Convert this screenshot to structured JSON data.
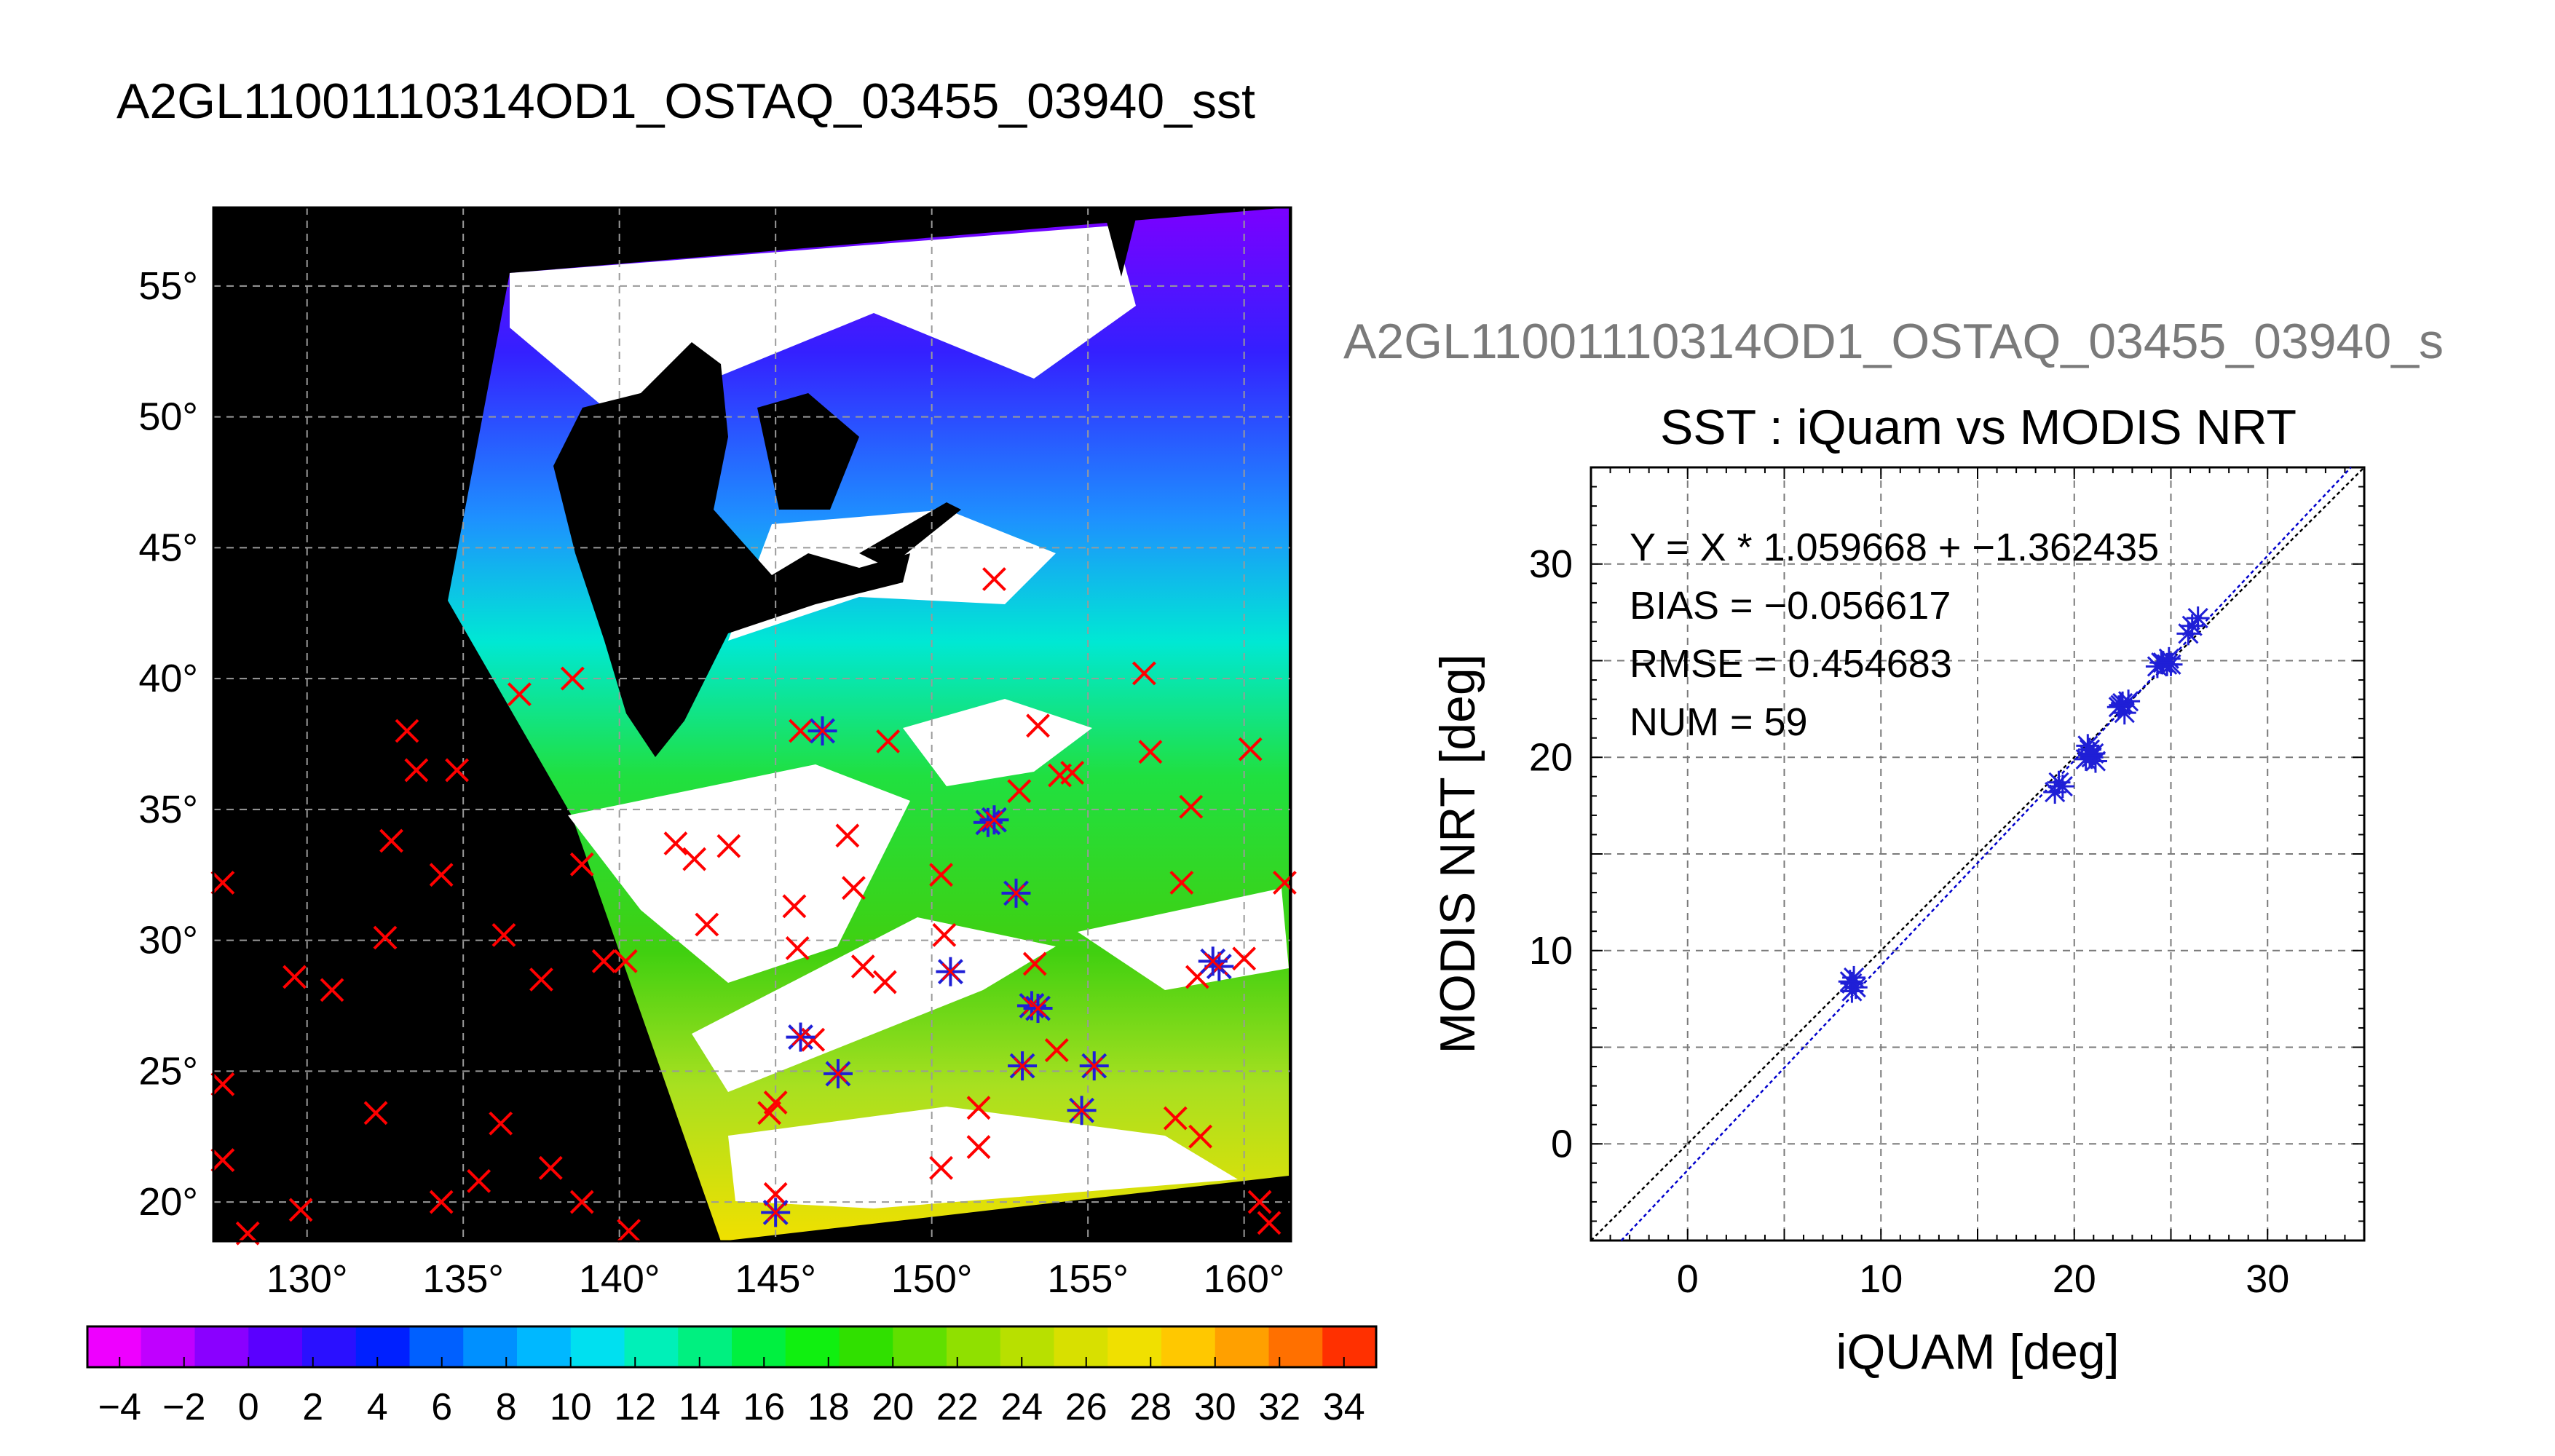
{
  "figure_title": "A2GL11001110314OD1_OSTAQ_03455_03940_sst",
  "ghost_title": "A2GL11001110314OD1_OSTAQ_03455_03940_s",
  "colors": {
    "land": "#000000",
    "ocean_bg": "#ffffff",
    "insitu_only": "#ff0000",
    "matched": "#1f1fd6",
    "fit_line": "#0000cc",
    "one_to_one": "#000000"
  },
  "chart_data": [
    {
      "type": "map",
      "lon_labels": [
        "130°",
        "135°",
        "140°",
        "145°",
        "150°",
        "155°",
        "160°"
      ],
      "lat_labels": [
        "55°",
        "50°",
        "45°",
        "40°",
        "35°",
        "30°",
        "25°",
        "20°"
      ],
      "lon_range": [
        127,
        161.5
      ],
      "lat_range": [
        18.5,
        58
      ],
      "insitu_points": [
        [
          127.3,
          32.2
        ],
        [
          127.3,
          24.5
        ],
        [
          127.3,
          21.6
        ],
        [
          128.1,
          18.8
        ],
        [
          129.6,
          28.6
        ],
        [
          130.8,
          28.1
        ],
        [
          129.8,
          19.7
        ],
        [
          132.7,
          33.8
        ],
        [
          132.5,
          30.1
        ],
        [
          133.2,
          38
        ],
        [
          133.5,
          36.5
        ],
        [
          134.8,
          36.5
        ],
        [
          134.3,
          32.5
        ],
        [
          132.2,
          23.4
        ],
        [
          136.3,
          30.2
        ],
        [
          136.8,
          39.4
        ],
        [
          137.5,
          28.5
        ],
        [
          138.5,
          40
        ],
        [
          137.8,
          21.3
        ],
        [
          136.2,
          23
        ],
        [
          135.5,
          20.8
        ],
        [
          134.3,
          20
        ],
        [
          138.8,
          20
        ],
        [
          140.3,
          18.9
        ],
        [
          140.2,
          29.2
        ],
        [
          139.5,
          29.2
        ],
        [
          138.8,
          32.9
        ],
        [
          141.8,
          33.7
        ],
        [
          142.4,
          33.1
        ],
        [
          142.8,
          30.6
        ],
        [
          143.5,
          33.6
        ],
        [
          145,
          23.8
        ],
        [
          144.8,
          23.4
        ],
        [
          145,
          20.3
        ],
        [
          145.6,
          31.3
        ],
        [
          145.7,
          29.7
        ],
        [
          146.2,
          26.2
        ],
        [
          145.8,
          38
        ],
        [
          147.3,
          34
        ],
        [
          147.5,
          32
        ],
        [
          147.8,
          29
        ],
        [
          148.5,
          28.4
        ],
        [
          148.6,
          37.6
        ],
        [
          150.3,
          32.5
        ],
        [
          150.4,
          30.2
        ],
        [
          150.3,
          21.3
        ],
        [
          151.5,
          23.6
        ],
        [
          151.5,
          22.1
        ],
        [
          152.8,
          35.7
        ],
        [
          153.4,
          38.2
        ],
        [
          154.1,
          36.3
        ],
        [
          154.5,
          36.4
        ],
        [
          153.3,
          29.1
        ],
        [
          154,
          25.8
        ],
        [
          156.8,
          40.2
        ],
        [
          157,
          37.2
        ],
        [
          158,
          32.2
        ],
        [
          158.3,
          35.1
        ],
        [
          158.5,
          28.6
        ],
        [
          158.6,
          22.5
        ],
        [
          157.8,
          23.2
        ],
        [
          160.2,
          37.3
        ],
        [
          160.5,
          20
        ],
        [
          160.8,
          19.2
        ],
        [
          161.3,
          32.2
        ],
        [
          160,
          29.3
        ],
        [
          152,
          43.8
        ]
      ],
      "matched_points": [
        [
          146.5,
          38
        ],
        [
          151.8,
          34.5
        ],
        [
          152.7,
          31.8
        ],
        [
          150.6,
          28.8
        ],
        [
          153.2,
          27.5
        ],
        [
          152.9,
          25.2
        ],
        [
          155.2,
          25.2
        ],
        [
          154.8,
          23.5
        ],
        [
          147,
          24.9
        ],
        [
          145.8,
          26.3
        ],
        [
          145,
          19.6
        ],
        [
          159.2,
          29
        ],
        [
          152,
          34.6
        ],
        [
          153.4,
          27.4
        ],
        [
          159,
          29.2
        ]
      ],
      "colorbar_labels": [
        "−4",
        "−2",
        "0",
        "2",
        "4",
        "6",
        "8",
        "10",
        "12",
        "14",
        "16",
        "18",
        "20",
        "22",
        "24",
        "26",
        "28",
        "30",
        "32",
        "34"
      ],
      "colorbar_range": [
        -5,
        35
      ]
    },
    {
      "type": "scatter",
      "title": "SST : iQuam vs MODIS NRT",
      "xlabel": "iQUAM [deg]",
      "ylabel": "MODIS NRT [deg]",
      "xlim": [
        -5,
        35
      ],
      "ylim": [
        -5,
        35
      ],
      "xticks": [
        "0",
        "10",
        "20",
        "30"
      ],
      "yticks": [
        "0",
        "10",
        "20",
        "30"
      ],
      "grid": true,
      "annotations": [
        "Y = X * 1.059668 + −1.362435",
        "BIAS = −0.056617",
        "RMSE = 0.454683",
        "NUM = 59"
      ],
      "fit": {
        "slope": 1.059668,
        "intercept": -1.362435
      },
      "points": [
        [
          8.5,
          8.3
        ],
        [
          8.6,
          8.6
        ],
        [
          8.5,
          7.9
        ],
        [
          8.7,
          8.1
        ],
        [
          8.4,
          8.4
        ],
        [
          19,
          18.2
        ],
        [
          19.2,
          18.7
        ],
        [
          19.4,
          18.5
        ],
        [
          20.6,
          19.9
        ],
        [
          20.8,
          20.4
        ],
        [
          20.9,
          20
        ],
        [
          21,
          20.2
        ],
        [
          20.7,
          20.6
        ],
        [
          21.1,
          19.8
        ],
        [
          20.8,
          20.1
        ],
        [
          22.3,
          22.6
        ],
        [
          22.5,
          22.8
        ],
        [
          22.6,
          22.3
        ],
        [
          22.8,
          22.9
        ],
        [
          22.4,
          22.7
        ],
        [
          24.3,
          24.7
        ],
        [
          24.5,
          24.9
        ],
        [
          24.8,
          24.8
        ],
        [
          24.9,
          25.1
        ],
        [
          25,
          24.8
        ],
        [
          24.6,
          24.9
        ],
        [
          25.9,
          26.4
        ],
        [
          26.4,
          27.2
        ],
        [
          26.1,
          26.8
        ]
      ]
    }
  ]
}
